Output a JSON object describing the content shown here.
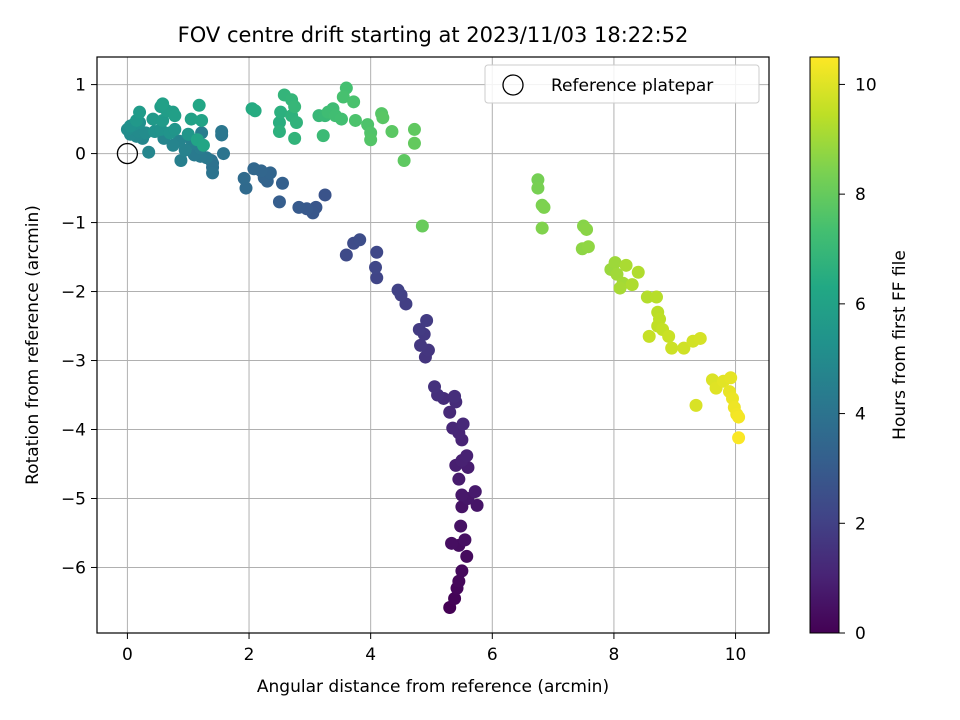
{
  "chart_data": {
    "type": "scatter",
    "title": "FOV centre drift starting at 2023/11/03 18:22:52",
    "xlabel": "Angular distance from reference (arcmin)",
    "ylabel": "Rotation from reference (arcmin)",
    "xlim": [
      -0.5,
      10.55
    ],
    "ylim": [
      -6.95,
      1.4
    ],
    "xticks": [
      0,
      2,
      4,
      6,
      8,
      10
    ],
    "yticks": [
      1,
      0,
      -1,
      -2,
      -3,
      -4,
      -5,
      -6
    ],
    "grid": true,
    "legend": {
      "position": "top-right",
      "entries": [
        "Reference platepar"
      ]
    },
    "reference_point": {
      "x": 0,
      "y": 0
    },
    "colorbar": {
      "label": "Hours from first FF file",
      "range": [
        0,
        10.5
      ],
      "ticks": [
        0,
        2,
        4,
        6,
        8,
        10
      ],
      "colormap": "viridis"
    },
    "points": [
      {
        "x": 5.3,
        "y": -6.58,
        "c": 0.0
      },
      {
        "x": 5.38,
        "y": -6.45,
        "c": 0.1
      },
      {
        "x": 5.42,
        "y": -6.3,
        "c": 0.15
      },
      {
        "x": 5.45,
        "y": -6.2,
        "c": 0.2
      },
      {
        "x": 5.5,
        "y": -6.05,
        "c": 0.25
      },
      {
        "x": 5.58,
        "y": -5.84,
        "c": 0.3
      },
      {
        "x": 5.45,
        "y": -5.68,
        "c": 0.35
      },
      {
        "x": 5.33,
        "y": -5.65,
        "c": 0.4
      },
      {
        "x": 5.55,
        "y": -5.6,
        "c": 0.45
      },
      {
        "x": 5.48,
        "y": -5.4,
        "c": 0.5
      },
      {
        "x": 5.5,
        "y": -5.12,
        "c": 0.55
      },
      {
        "x": 5.75,
        "y": -5.1,
        "c": 0.6
      },
      {
        "x": 5.6,
        "y": -5.0,
        "c": 0.65
      },
      {
        "x": 5.5,
        "y": -4.95,
        "c": 0.7
      },
      {
        "x": 5.72,
        "y": -4.9,
        "c": 0.75
      },
      {
        "x": 5.45,
        "y": -4.72,
        "c": 0.8
      },
      {
        "x": 5.6,
        "y": -4.55,
        "c": 0.85
      },
      {
        "x": 5.4,
        "y": -4.52,
        "c": 0.9
      },
      {
        "x": 5.5,
        "y": -4.45,
        "c": 0.95
      },
      {
        "x": 5.58,
        "y": -4.38,
        "c": 1.0
      },
      {
        "x": 5.5,
        "y": -4.15,
        "c": 1.05
      },
      {
        "x": 5.45,
        "y": -4.05,
        "c": 1.1
      },
      {
        "x": 5.35,
        "y": -3.98,
        "c": 1.15
      },
      {
        "x": 5.52,
        "y": -3.92,
        "c": 1.2
      },
      {
        "x": 5.3,
        "y": -3.75,
        "c": 1.25
      },
      {
        "x": 5.4,
        "y": -3.6,
        "c": 1.3
      },
      {
        "x": 5.2,
        "y": -3.55,
        "c": 1.35
      },
      {
        "x": 5.38,
        "y": -3.52,
        "c": 1.4
      },
      {
        "x": 5.1,
        "y": -3.5,
        "c": 1.45
      },
      {
        "x": 5.05,
        "y": -3.38,
        "c": 1.5
      },
      {
        "x": 4.9,
        "y": -2.95,
        "c": 1.6
      },
      {
        "x": 4.95,
        "y": -2.85,
        "c": 1.65
      },
      {
        "x": 4.82,
        "y": -2.78,
        "c": 1.7
      },
      {
        "x": 4.88,
        "y": -2.62,
        "c": 1.75
      },
      {
        "x": 4.8,
        "y": -2.55,
        "c": 1.8
      },
      {
        "x": 4.92,
        "y": -2.42,
        "c": 1.85
      },
      {
        "x": 4.58,
        "y": -2.18,
        "c": 1.95
      },
      {
        "x": 4.5,
        "y": -2.05,
        "c": 2.0
      },
      {
        "x": 4.45,
        "y": -1.98,
        "c": 2.05
      },
      {
        "x": 4.1,
        "y": -1.8,
        "c": 2.15
      },
      {
        "x": 4.08,
        "y": -1.65,
        "c": 2.2
      },
      {
        "x": 4.1,
        "y": -1.43,
        "c": 2.25
      },
      {
        "x": 3.6,
        "y": -1.47,
        "c": 2.35
      },
      {
        "x": 3.72,
        "y": -1.3,
        "c": 2.4
      },
      {
        "x": 3.82,
        "y": -1.25,
        "c": 2.45
      },
      {
        "x": 3.25,
        "y": -0.6,
        "c": 2.7
      },
      {
        "x": 3.1,
        "y": -0.78,
        "c": 2.8
      },
      {
        "x": 3.05,
        "y": -0.86,
        "c": 2.85
      },
      {
        "x": 2.95,
        "y": -0.8,
        "c": 2.9
      },
      {
        "x": 2.82,
        "y": -0.78,
        "c": 2.95
      },
      {
        "x": 2.5,
        "y": -0.7,
        "c": 3.1
      },
      {
        "x": 2.55,
        "y": -0.43,
        "c": 3.2
      },
      {
        "x": 2.3,
        "y": -0.4,
        "c": 3.3
      },
      {
        "x": 2.25,
        "y": -0.35,
        "c": 3.35
      },
      {
        "x": 2.35,
        "y": -0.28,
        "c": 3.4
      },
      {
        "x": 2.2,
        "y": -0.25,
        "c": 3.45
      },
      {
        "x": 2.08,
        "y": -0.22,
        "c": 3.5
      },
      {
        "x": 1.95,
        "y": -0.5,
        "c": 3.6
      },
      {
        "x": 1.92,
        "y": -0.36,
        "c": 3.65
      },
      {
        "x": 1.4,
        "y": -0.2,
        "c": 3.85
      },
      {
        "x": 1.38,
        "y": -0.1,
        "c": 3.9
      },
      {
        "x": 1.4,
        "y": -0.14,
        "c": 3.95
      },
      {
        "x": 1.4,
        "y": -0.28,
        "c": 4.0
      },
      {
        "x": 1.58,
        "y": 0.0,
        "c": 4.05
      },
      {
        "x": 1.55,
        "y": 0.27,
        "c": 4.1
      },
      {
        "x": 1.55,
        "y": 0.32,
        "c": 4.15
      },
      {
        "x": 1.3,
        "y": -0.06,
        "c": 4.2
      },
      {
        "x": 1.2,
        "y": -0.04,
        "c": 4.25
      },
      {
        "x": 1.1,
        "y": -0.02,
        "c": 4.3
      },
      {
        "x": 1.2,
        "y": 0.08,
        "c": 4.35
      },
      {
        "x": 1.22,
        "y": 0.3,
        "c": 4.4
      },
      {
        "x": 1.1,
        "y": 0.15,
        "c": 4.45
      },
      {
        "x": 0.88,
        "y": -0.1,
        "c": 4.5
      },
      {
        "x": 1.05,
        "y": 0.2,
        "c": 4.55
      },
      {
        "x": 0.95,
        "y": 0.05,
        "c": 4.6
      },
      {
        "x": 0.85,
        "y": 0.18,
        "c": 4.65
      },
      {
        "x": 0.75,
        "y": 0.12,
        "c": 4.7
      },
      {
        "x": 0.6,
        "y": 0.22,
        "c": 4.75
      },
      {
        "x": 0.35,
        "y": 0.02,
        "c": 4.8
      },
      {
        "x": 0.25,
        "y": 0.22,
        "c": 4.85
      },
      {
        "x": 0.15,
        "y": 0.25,
        "c": 4.9
      },
      {
        "x": 0.05,
        "y": 0.28,
        "c": 4.95
      },
      {
        "x": 0.18,
        "y": 0.32,
        "c": 5.0
      },
      {
        "x": 0.3,
        "y": 0.3,
        "c": 5.05
      },
      {
        "x": 0.0,
        "y": 0.35,
        "c": 5.1
      },
      {
        "x": 0.1,
        "y": 0.42,
        "c": 5.15
      },
      {
        "x": 0.2,
        "y": 0.45,
        "c": 5.2
      },
      {
        "x": 0.05,
        "y": 0.4,
        "c": 5.25
      },
      {
        "x": 0.45,
        "y": 0.32,
        "c": 5.3
      },
      {
        "x": 0.55,
        "y": 0.35,
        "c": 5.35
      },
      {
        "x": 0.7,
        "y": 0.3,
        "c": 5.4
      },
      {
        "x": 0.78,
        "y": 0.35,
        "c": 5.45
      },
      {
        "x": 1.0,
        "y": 0.28,
        "c": 5.5
      },
      {
        "x": 0.15,
        "y": 0.48,
        "c": 5.55
      },
      {
        "x": 0.42,
        "y": 0.5,
        "c": 5.6
      },
      {
        "x": 0.58,
        "y": 0.48,
        "c": 5.65
      },
      {
        "x": 0.2,
        "y": 0.6,
        "c": 5.7
      },
      {
        "x": 0.55,
        "y": 0.68,
        "c": 5.75
      },
      {
        "x": 0.65,
        "y": 0.62,
        "c": 5.8
      },
      {
        "x": 0.75,
        "y": 0.6,
        "c": 5.85
      },
      {
        "x": 0.78,
        "y": 0.55,
        "c": 5.9
      },
      {
        "x": 0.58,
        "y": 0.72,
        "c": 5.95
      },
      {
        "x": 1.05,
        "y": 0.5,
        "c": 6.0
      },
      {
        "x": 1.22,
        "y": 0.48,
        "c": 6.05
      },
      {
        "x": 1.15,
        "y": 0.2,
        "c": 6.1
      },
      {
        "x": 1.25,
        "y": 0.12,
        "c": 6.15
      },
      {
        "x": 1.18,
        "y": 0.7,
        "c": 6.2
      },
      {
        "x": 2.05,
        "y": 0.65,
        "c": 6.4
      },
      {
        "x": 2.1,
        "y": 0.62,
        "c": 6.45
      },
      {
        "x": 2.5,
        "y": 0.45,
        "c": 6.55
      },
      {
        "x": 2.52,
        "y": 0.6,
        "c": 6.6
      },
      {
        "x": 2.5,
        "y": 0.32,
        "c": 6.65
      },
      {
        "x": 2.7,
        "y": 0.55,
        "c": 6.7
      },
      {
        "x": 2.78,
        "y": 0.45,
        "c": 6.75
      },
      {
        "x": 2.75,
        "y": 0.22,
        "c": 6.8
      },
      {
        "x": 2.58,
        "y": 0.85,
        "c": 6.85
      },
      {
        "x": 2.7,
        "y": 0.78,
        "c": 6.9
      },
      {
        "x": 2.75,
        "y": 0.68,
        "c": 6.95
      },
      {
        "x": 3.15,
        "y": 0.55,
        "c": 7.0
      },
      {
        "x": 3.25,
        "y": 0.55,
        "c": 7.05
      },
      {
        "x": 3.22,
        "y": 0.26,
        "c": 7.1
      },
      {
        "x": 3.38,
        "y": 0.65,
        "c": 7.15
      },
      {
        "x": 3.3,
        "y": 0.6,
        "c": 7.2
      },
      {
        "x": 3.42,
        "y": 0.55,
        "c": 7.25
      },
      {
        "x": 3.52,
        "y": 0.5,
        "c": 7.3
      },
      {
        "x": 3.6,
        "y": 0.95,
        "c": 7.35
      },
      {
        "x": 3.55,
        "y": 0.82,
        "c": 7.4
      },
      {
        "x": 3.72,
        "y": 0.75,
        "c": 7.45
      },
      {
        "x": 3.75,
        "y": 0.48,
        "c": 7.5
      },
      {
        "x": 3.95,
        "y": 0.42,
        "c": 7.55
      },
      {
        "x": 4.0,
        "y": 0.3,
        "c": 7.6
      },
      {
        "x": 4.0,
        "y": 0.2,
        "c": 7.65
      },
      {
        "x": 4.18,
        "y": 0.58,
        "c": 7.7
      },
      {
        "x": 4.2,
        "y": 0.52,
        "c": 7.75
      },
      {
        "x": 4.35,
        "y": 0.32,
        "c": 7.8
      },
      {
        "x": 4.55,
        "y": -0.1,
        "c": 7.85
      },
      {
        "x": 4.72,
        "y": 0.35,
        "c": 7.9
      },
      {
        "x": 4.72,
        "y": 0.15,
        "c": 7.95
      },
      {
        "x": 4.85,
        "y": -1.05,
        "c": 8.05
      },
      {
        "x": 6.75,
        "y": -0.38,
        "c": 8.3
      },
      {
        "x": 6.75,
        "y": -0.5,
        "c": 8.35
      },
      {
        "x": 6.82,
        "y": -0.75,
        "c": 8.4
      },
      {
        "x": 6.85,
        "y": -0.78,
        "c": 8.45
      },
      {
        "x": 6.82,
        "y": -1.08,
        "c": 8.5
      },
      {
        "x": 7.5,
        "y": -1.05,
        "c": 8.6
      },
      {
        "x": 7.55,
        "y": -1.1,
        "c": 8.65
      },
      {
        "x": 7.48,
        "y": -1.38,
        "c": 8.7
      },
      {
        "x": 7.58,
        "y": -1.35,
        "c": 8.75
      },
      {
        "x": 7.95,
        "y": -1.68,
        "c": 8.9
      },
      {
        "x": 8.02,
        "y": -1.58,
        "c": 8.95
      },
      {
        "x": 8.05,
        "y": -1.75,
        "c": 9.0
      },
      {
        "x": 8.15,
        "y": -1.88,
        "c": 9.05
      },
      {
        "x": 8.1,
        "y": -1.95,
        "c": 9.1
      },
      {
        "x": 8.2,
        "y": -1.62,
        "c": 9.15
      },
      {
        "x": 8.3,
        "y": -1.9,
        "c": 9.2
      },
      {
        "x": 8.4,
        "y": -1.72,
        "c": 9.25
      },
      {
        "x": 8.55,
        "y": -2.08,
        "c": 9.3
      },
      {
        "x": 8.7,
        "y": -2.08,
        "c": 9.35
      },
      {
        "x": 8.72,
        "y": -2.3,
        "c": 9.4
      },
      {
        "x": 8.75,
        "y": -2.4,
        "c": 9.45
      },
      {
        "x": 8.72,
        "y": -2.5,
        "c": 9.5
      },
      {
        "x": 8.8,
        "y": -2.55,
        "c": 9.55
      },
      {
        "x": 8.58,
        "y": -2.65,
        "c": 9.6
      },
      {
        "x": 8.9,
        "y": -2.65,
        "c": 9.65
      },
      {
        "x": 8.95,
        "y": -2.82,
        "c": 9.7
      },
      {
        "x": 9.15,
        "y": -2.82,
        "c": 9.75
      },
      {
        "x": 9.3,
        "y": -2.72,
        "c": 9.8
      },
      {
        "x": 9.42,
        "y": -2.68,
        "c": 9.85
      },
      {
        "x": 9.35,
        "y": -3.65,
        "c": 9.9
      },
      {
        "x": 9.62,
        "y": -3.28,
        "c": 9.95
      },
      {
        "x": 9.68,
        "y": -3.4,
        "c": 10.0
      },
      {
        "x": 9.8,
        "y": -3.3,
        "c": 10.05
      },
      {
        "x": 9.92,
        "y": -3.25,
        "c": 10.1
      },
      {
        "x": 9.9,
        "y": -3.45,
        "c": 10.15
      },
      {
        "x": 9.95,
        "y": -3.55,
        "c": 10.2
      },
      {
        "x": 9.98,
        "y": -3.68,
        "c": 10.25
      },
      {
        "x": 10.02,
        "y": -3.78,
        "c": 10.3
      },
      {
        "x": 10.05,
        "y": -3.82,
        "c": 10.35
      },
      {
        "x": 10.05,
        "y": -4.12,
        "c": 10.45
      }
    ]
  }
}
